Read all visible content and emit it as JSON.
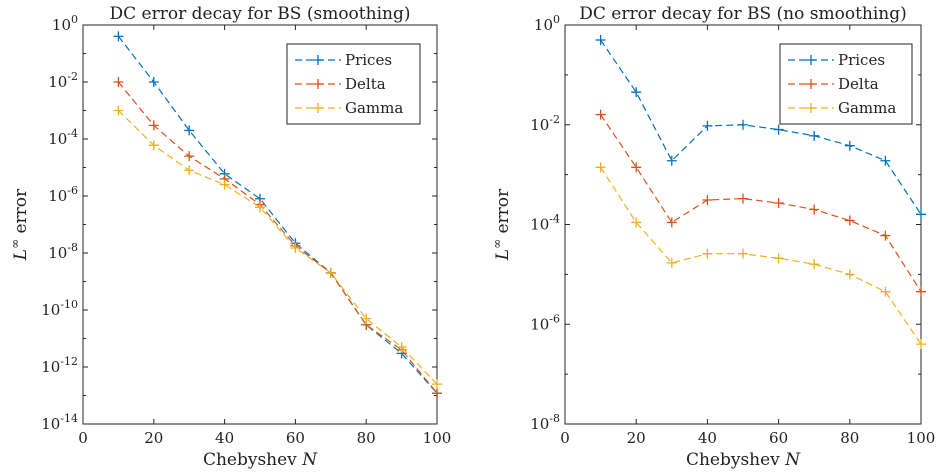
{
  "chart_data": [
    {
      "type": "line",
      "title": "DC error decay for BS (smoothing)",
      "xlabel": "Chebyshev",
      "xlabel_italic": "N",
      "ylabel": "error",
      "ylabel_prefix": "L",
      "ylabel_sup": "∞",
      "xlim": [
        0,
        100
      ],
      "xticks": [
        0,
        20,
        40,
        60,
        80,
        100
      ],
      "ylim_exp": [
        -14,
        0
      ],
      "yticks_exp": [
        -14,
        -12,
        -10,
        -8,
        -6,
        -4,
        -2,
        0
      ],
      "yscale": "log",
      "grid": false,
      "legend_position": "top-right",
      "x": [
        10,
        20,
        30,
        40,
        50,
        60,
        70,
        80,
        90,
        100
      ],
      "series": [
        {
          "name": "Prices",
          "color": "#0072BD",
          "values": [
            0.4,
            0.01,
            0.0002,
            6e-06,
            8e-07,
            2.2e-08,
            2e-09,
            3e-11,
            3e-12,
            1.2e-13
          ]
        },
        {
          "name": "Delta",
          "color": "#D95319",
          "values": [
            0.01,
            0.0003,
            2.5e-05,
            4e-06,
            5e-07,
            1.8e-08,
            2e-09,
            3e-11,
            4e-12,
            1.2e-13
          ]
        },
        {
          "name": "Gamma",
          "color": "#EDB120",
          "values": [
            0.001,
            6e-05,
            8e-06,
            2.5e-06,
            4e-07,
            1.5e-08,
            2e-09,
            5e-11,
            5e-12,
            2.5e-13
          ]
        }
      ]
    },
    {
      "type": "line",
      "title": "DC error decay for BS (no smoothing)",
      "xlabel": "Chebyshev",
      "xlabel_italic": "N",
      "ylabel": "error",
      "ylabel_prefix": "L",
      "ylabel_sup": "∞",
      "xlim": [
        0,
        100
      ],
      "xticks": [
        0,
        20,
        40,
        60,
        80,
        100
      ],
      "ylim_exp": [
        -8,
        0
      ],
      "yticks_exp": [
        -8,
        -6,
        -4,
        -2,
        0
      ],
      "yscale": "log",
      "grid": false,
      "legend_position": "top-right",
      "x": [
        10,
        20,
        30,
        40,
        50,
        60,
        70,
        80,
        90,
        100
      ],
      "series": [
        {
          "name": "Prices",
          "color": "#0072BD",
          "values": [
            0.5,
            0.045,
            0.0019,
            0.0095,
            0.01,
            0.008,
            0.006,
            0.0038,
            0.0019,
            0.00016
          ]
        },
        {
          "name": "Delta",
          "color": "#D95319",
          "values": [
            0.016,
            0.0014,
            0.00011,
            0.00031,
            0.00033,
            0.00027,
            0.0002,
            0.00012,
            6e-05,
            4.5e-06
          ]
        },
        {
          "name": "Gamma",
          "color": "#EDB120",
          "values": [
            0.0014,
            0.00011,
            1.7e-05,
            2.6e-05,
            2.6e-05,
            2.1e-05,
            1.6e-05,
            1e-05,
            4.5e-06,
            4e-07
          ]
        }
      ]
    }
  ]
}
